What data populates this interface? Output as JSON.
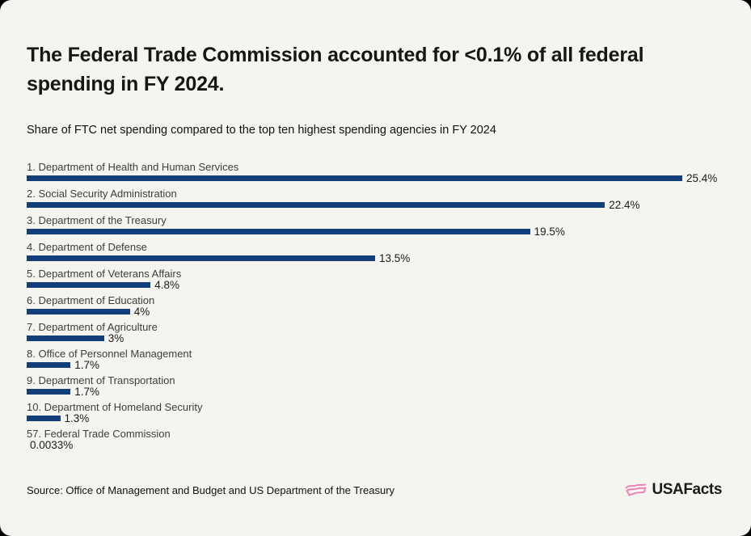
{
  "card": {
    "title": "The Federal Trade Commission accounted for <0.1% of all federal\nspending in FY 2024.",
    "subtitle": "Share of FTC net spending compared to the top ten highest spending agencies in FY 2024",
    "source": "Source: Office of Management and Budget and US Department of the Treasury",
    "brand": "USAFacts"
  },
  "colors": {
    "card_background": "#f5f4ee",
    "outer_background": "#000000",
    "bar": "#133e7c",
    "title_text": "#161616",
    "category_text": "#3d3d3d",
    "value_text": "#1b1b1b",
    "brand_pink": "#f279b5"
  },
  "chart_data": {
    "type": "bar",
    "orientation": "horizontal",
    "title": "The Federal Trade Commission accounted for <0.1% of all federal spending in FY 2024.",
    "subtitle": "Share of FTC net spending compared to the top ten highest spending agencies in FY 2024",
    "unit": "%",
    "xlim": [
      0,
      25.4
    ],
    "grid": false,
    "legend": false,
    "categories": [
      "1. Department of Health and Human Services",
      "2. Social Security Administration",
      "3. Department of the Treasury",
      "4. Department of Defense",
      "5. Department of Veterans Affairs",
      "6. Department of Education",
      "7. Department of Agriculture",
      "8. Office of Personnel Management",
      "9. Department of Transportation",
      "10. Department of Homeland Security",
      "57. Federal Trade Commission"
    ],
    "values": [
      25.4,
      22.4,
      19.5,
      13.5,
      4.8,
      4,
      3,
      1.7,
      1.7,
      1.3,
      0.0033
    ],
    "value_labels": [
      "25.4%",
      "22.4%",
      "19.5%",
      "13.5%",
      "4.8%",
      "4%",
      "3%",
      "1.7%",
      "1.7%",
      "1.3%",
      "0.0033%"
    ]
  }
}
